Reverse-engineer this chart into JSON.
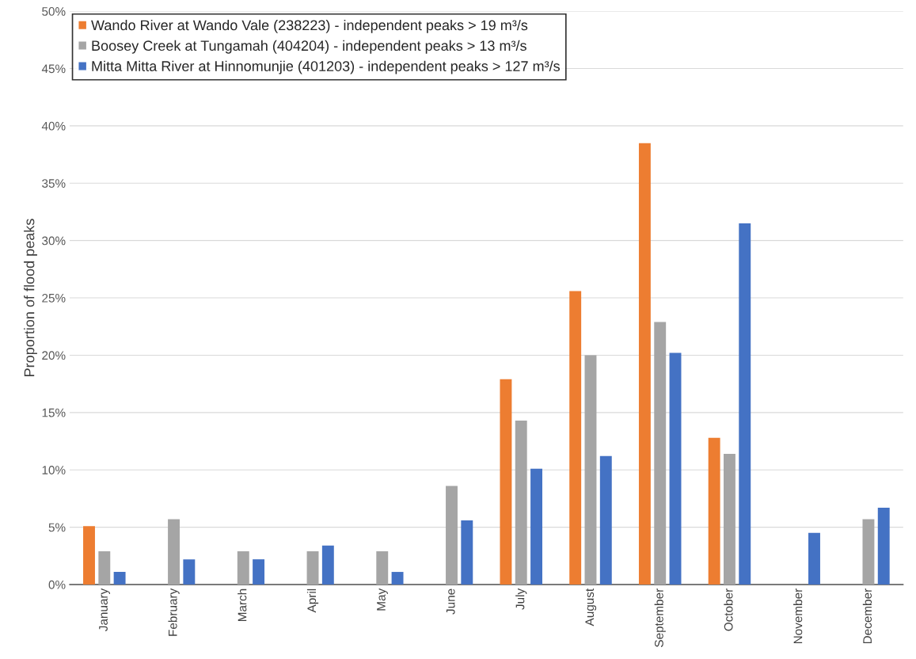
{
  "chart_data": {
    "type": "bar",
    "ylabel": "Proportion of flood peaks",
    "categories": [
      "January",
      "February",
      "March",
      "April",
      "May",
      "June",
      "July",
      "August",
      "September",
      "October",
      "November",
      "December"
    ],
    "series": [
      {
        "name": "Wando River at Wando Vale (238223) - independent peaks > 19 m³/s",
        "color": "#ed7d31",
        "values": [
          5.1,
          null,
          null,
          null,
          null,
          null,
          17.9,
          25.6,
          38.5,
          12.8,
          null,
          null
        ]
      },
      {
        "name": "Boosey Creek at Tungamah (404204) - independent peaks > 13 m³/s",
        "color": "#a5a5a5",
        "values": [
          2.9,
          5.7,
          2.9,
          2.9,
          2.9,
          8.6,
          14.3,
          20.0,
          22.9,
          11.4,
          null,
          5.7
        ]
      },
      {
        "name": "Mitta Mitta River at Hinnomunjie (401203) - independent peaks > 127 m³/s",
        "color": "#4472c4",
        "values": [
          1.1,
          2.2,
          2.2,
          3.4,
          1.1,
          5.6,
          10.1,
          11.2,
          20.2,
          31.5,
          4.5,
          6.7
        ]
      }
    ],
    "ylim": [
      0,
      50
    ],
    "yticks": [
      {
        "value": 0,
        "label": "0%"
      },
      {
        "value": 5,
        "label": "5%"
      },
      {
        "value": 10,
        "label": "10%"
      },
      {
        "value": 15,
        "label": "15%"
      },
      {
        "value": 20,
        "label": "20%"
      },
      {
        "value": 25,
        "label": "25%"
      },
      {
        "value": 30,
        "label": "30%"
      },
      {
        "value": 35,
        "label": "35%"
      },
      {
        "value": 40,
        "label": "40%"
      },
      {
        "value": 45,
        "label": "45%"
      },
      {
        "value": 50,
        "label": "50%"
      }
    ],
    "grid": "y",
    "legend": "top left"
  }
}
